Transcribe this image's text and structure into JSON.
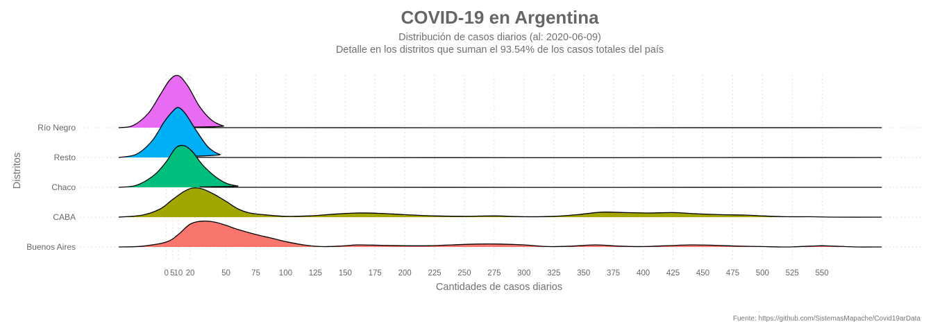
{
  "header": {
    "title": "COVID-19 en Argentina",
    "subtitle_line1": "Distribución de casos diarios (al: 2020-06-09)",
    "subtitle_line2": "Detalle en los distritos que suman el 93.54% de los casos totales del país"
  },
  "caption": "Fuente: https://github.com/SistemasMapache/Covid19arData",
  "chart_data": {
    "type": "ridgeline",
    "xlabel": "Cantidades de casos diarios",
    "ylabel": "Distritos",
    "xlim": [
      -40,
      600
    ],
    "x_ticks": [
      0,
      5,
      10,
      20,
      50,
      75,
      100,
      125,
      150,
      175,
      200,
      225,
      250,
      275,
      300,
      325,
      350,
      375,
      400,
      425,
      450,
      475,
      500,
      525,
      550
    ],
    "x_tick_labels": [
      "0",
      "5",
      "10",
      "20",
      "50",
      "75",
      "100",
      "125",
      "150",
      "175",
      "200",
      "225",
      "250",
      "275",
      "300",
      "325",
      "350",
      "375",
      "400",
      "425",
      "450",
      "475",
      "500",
      "525",
      "550"
    ],
    "grid": true,
    "series": [
      {
        "name": "Buenos Aires",
        "color": "#F8766D",
        "density": [
          [
            -40,
            0
          ],
          [
            -20,
            0.02
          ],
          [
            0,
            0.12
          ],
          [
            10,
            0.3
          ],
          [
            20,
            0.55
          ],
          [
            30,
            0.62
          ],
          [
            40,
            0.6
          ],
          [
            50,
            0.52
          ],
          [
            60,
            0.42
          ],
          [
            75,
            0.3
          ],
          [
            90,
            0.2
          ],
          [
            100,
            0.13
          ],
          [
            115,
            0.05
          ],
          [
            130,
            0.01
          ],
          [
            145,
            0.02
          ],
          [
            160,
            0.05
          ],
          [
            180,
            0.04
          ],
          [
            200,
            0.03
          ],
          [
            220,
            0.03
          ],
          [
            240,
            0.05
          ],
          [
            260,
            0.07
          ],
          [
            280,
            0.07
          ],
          [
            300,
            0.05
          ],
          [
            320,
            0.01
          ],
          [
            340,
            0.02
          ],
          [
            360,
            0.05
          ],
          [
            380,
            0.02
          ],
          [
            400,
            0.01
          ],
          [
            420,
            0.03
          ],
          [
            440,
            0.05
          ],
          [
            460,
            0.04
          ],
          [
            480,
            0.02
          ],
          [
            500,
            0.01
          ],
          [
            520,
            0.0
          ],
          [
            540,
            0.02
          ],
          [
            550,
            0.03
          ],
          [
            560,
            0.02
          ],
          [
            580,
            0.0
          ],
          [
            600,
            0.0
          ]
        ]
      },
      {
        "name": "CABA",
        "color": "#A3A500",
        "density": [
          [
            -40,
            0
          ],
          [
            -20,
            0.05
          ],
          [
            -5,
            0.2
          ],
          [
            5,
            0.42
          ],
          [
            15,
            0.62
          ],
          [
            22,
            0.7
          ],
          [
            30,
            0.68
          ],
          [
            40,
            0.55
          ],
          [
            50,
            0.38
          ],
          [
            60,
            0.2
          ],
          [
            70,
            0.1
          ],
          [
            85,
            0.05
          ],
          [
            100,
            0.02
          ],
          [
            120,
            0.03
          ],
          [
            140,
            0.07
          ],
          [
            160,
            0.1
          ],
          [
            180,
            0.09
          ],
          [
            200,
            0.06
          ],
          [
            225,
            0.03
          ],
          [
            250,
            0.02
          ],
          [
            275,
            0.03
          ],
          [
            300,
            0.01
          ],
          [
            325,
            0.02
          ],
          [
            345,
            0.06
          ],
          [
            365,
            0.12
          ],
          [
            385,
            0.11
          ],
          [
            405,
            0.1
          ],
          [
            425,
            0.11
          ],
          [
            445,
            0.08
          ],
          [
            465,
            0.06
          ],
          [
            485,
            0.05
          ],
          [
            500,
            0.03
          ],
          [
            520,
            0.01
          ],
          [
            540,
            0.01
          ],
          [
            560,
            0.0
          ],
          [
            600,
            0.0
          ]
        ]
      },
      {
        "name": "Chaco",
        "color": "#00BF7D",
        "density": [
          [
            -40,
            0
          ],
          [
            -25,
            0.05
          ],
          [
            -10,
            0.3
          ],
          [
            0,
            0.62
          ],
          [
            8,
            0.95
          ],
          [
            15,
            1.0
          ],
          [
            22,
            0.85
          ],
          [
            30,
            0.55
          ],
          [
            40,
            0.28
          ],
          [
            50,
            0.1
          ],
          [
            60,
            0.03
          ],
          [
            70,
            0.0
          ],
          [
            600,
            0.0
          ]
        ]
      },
      {
        "name": "Resto",
        "color": "#00B0F6",
        "density": [
          [
            -40,
            0
          ],
          [
            -25,
            0.08
          ],
          [
            -12,
            0.4
          ],
          [
            -2,
            0.85
          ],
          [
            5,
            1.1
          ],
          [
            10,
            1.2
          ],
          [
            16,
            1.05
          ],
          [
            25,
            0.65
          ],
          [
            35,
            0.25
          ],
          [
            45,
            0.07
          ],
          [
            55,
            0.0
          ],
          [
            600,
            0.0
          ]
        ]
      },
      {
        "name": "Río Negro",
        "color": "#E76BF3",
        "density": [
          [
            -40,
            0
          ],
          [
            -28,
            0.05
          ],
          [
            -15,
            0.35
          ],
          [
            -5,
            0.8
          ],
          [
            3,
            1.15
          ],
          [
            10,
            1.25
          ],
          [
            18,
            1.0
          ],
          [
            28,
            0.5
          ],
          [
            38,
            0.18
          ],
          [
            48,
            0.04
          ],
          [
            58,
            0.0
          ],
          [
            600,
            0.0
          ]
        ]
      }
    ]
  }
}
